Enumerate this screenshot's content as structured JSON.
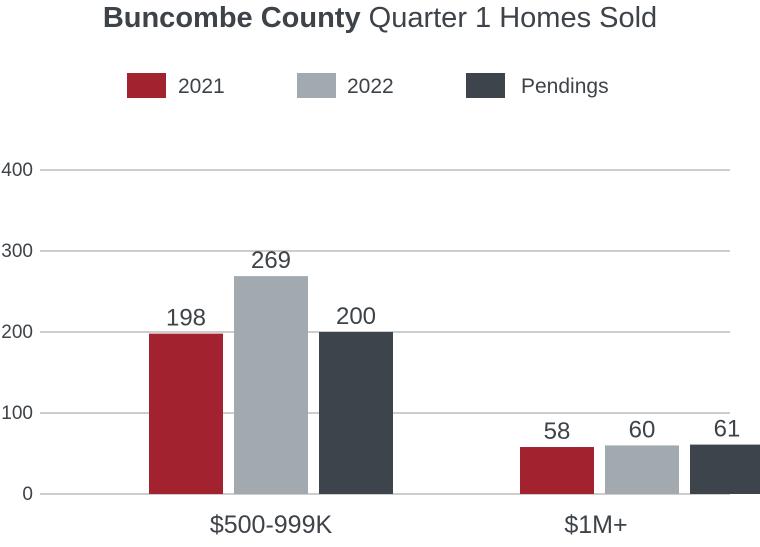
{
  "title": {
    "bold": "Buncombe County",
    "rest": "Quarter 1 Homes Sold"
  },
  "colors": {
    "2021": "#a32230",
    "2022": "#a2aaaf",
    "Pendings": "#3e444b",
    "gridline": "#9b9b9b",
    "text": "#3d4349"
  },
  "chart_data": {
    "type": "bar",
    "title": "Buncombe County Quarter 1 Homes Sold",
    "categories": [
      "$500-999K",
      "$1M+"
    ],
    "series": [
      {
        "name": "2021",
        "values": [
          198,
          58
        ]
      },
      {
        "name": "2022",
        "values": [
          269,
          60
        ]
      },
      {
        "name": "Pendings",
        "values": [
          200,
          61
        ]
      }
    ],
    "yticks": [
      "0",
      "100",
      "200",
      "300",
      "400"
    ],
    "ylim": [
      0,
      400
    ],
    "grid": true,
    "legend": "top-center"
  }
}
